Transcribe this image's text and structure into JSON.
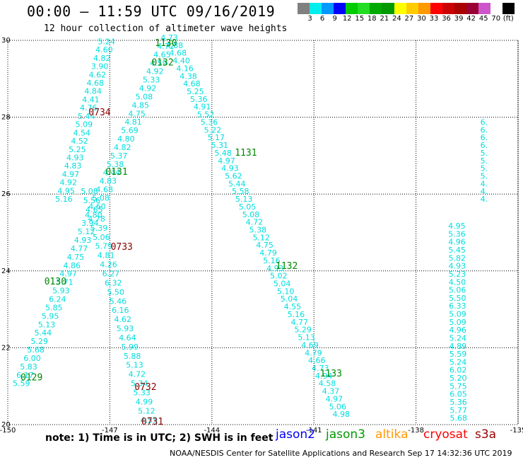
{
  "header": {
    "title": "00:00 – 11:59 UTC 09/16/2019",
    "subtitle": "12 hour collection of altimeter wave heights"
  },
  "legend": {
    "colors": [
      "#808080",
      "#00eeee",
      "#0099ff",
      "#0000ff",
      "#00cc00",
      "#22dd22",
      "#00aa00",
      "#009900",
      "#ffff00",
      "#ffcc00",
      "#ff9900",
      "#ff0000",
      "#cc0000",
      "#aa0000",
      "#990033",
      "#cc55cc",
      "#ffffff",
      "#000000"
    ],
    "labels": [
      "3",
      "6",
      "9",
      "12",
      "15",
      "18",
      "21",
      "24",
      "27",
      "30",
      "33",
      "36",
      "39",
      "42",
      "45",
      "70",
      "(ft)"
    ]
  },
  "axes": {
    "lat_ticks": [
      "30",
      "28",
      "26",
      "24",
      "22",
      "20"
    ],
    "lon_ticks": [
      "-150",
      "-147",
      "-144",
      "-141",
      "-138",
      "-135"
    ]
  },
  "chart_data": {
    "type": "map",
    "lon_range": [
      -150,
      -135
    ],
    "lat_range": [
      20,
      30
    ],
    "grid": true,
    "track_labels": [
      {
        "text": "1130",
        "lon": -145.35,
        "lat": 29.85,
        "color": "#008800"
      },
      {
        "text": "0132",
        "lon": -145.45,
        "lat": 29.35,
        "color": "#008800"
      },
      {
        "text": "0734",
        "lon": -147.3,
        "lat": 28.05,
        "color": "#880000"
      },
      {
        "text": "1131",
        "lon": -143.0,
        "lat": 27.0,
        "color": "#008800"
      },
      {
        "text": "0131",
        "lon": -146.8,
        "lat": 26.5,
        "color": "#008800"
      },
      {
        "text": "0733",
        "lon": -146.65,
        "lat": 24.55,
        "color": "#880000"
      },
      {
        "text": "1132",
        "lon": -141.8,
        "lat": 24.05,
        "color": "#008800"
      },
      {
        "text": "0130",
        "lon": -148.6,
        "lat": 23.65,
        "color": "#008800"
      },
      {
        "text": "1133",
        "lon": -140.5,
        "lat": 21.25,
        "color": "#008800"
      },
      {
        "text": "0129",
        "lon": -149.3,
        "lat": 21.15,
        "color": "#008800"
      },
      {
        "text": "0732",
        "lon": -145.95,
        "lat": 20.9,
        "color": "#880000"
      },
      {
        "text": "0731",
        "lon": -145.75,
        "lat": 20.0,
        "color": "#880000"
      }
    ],
    "tracks": [
      {
        "name": "",
        "color": "#00dddd",
        "lon_start": -147.1,
        "lat_start": 29.9,
        "lon_end": -148.35,
        "lat_end": 25.8,
        "values": [
          "5.24",
          "4.60",
          "4.82",
          "3.90",
          "4.62",
          "4.68",
          "4.84",
          "4.41",
          "4.76",
          "5.44",
          "5.09",
          "4.54",
          "4.52",
          "5.25",
          "4.93",
          "4.83",
          "4.97",
          "4.92",
          "4.95",
          "5.16"
        ]
      },
      {
        "name": "",
        "color": "#00dddd",
        "lon_start": -149.6,
        "lat_start": 21.0,
        "lon_end": -145.25,
        "lat_end": 30.0,
        "values": [
          "5.59",
          "6.17",
          "5.83",
          "6.00",
          "5.68",
          "5.29",
          "5.44",
          "5.13",
          "5.95",
          "5.85",
          "6.24",
          "5.93",
          "5.71",
          "4.97",
          "4.86",
          "4.75",
          "4.77",
          "4.93",
          "5.12",
          "3.94",
          "4.80",
          "4.60",
          "5.08",
          "4.68",
          "4.83",
          "4.44",
          "5.38",
          "5.37",
          "4.82",
          "4.80",
          "5.69",
          "4.81",
          "4.75",
          "4.85",
          "5.08",
          "4.92",
          "5.33",
          "4.92",
          "4.59",
          "4.65",
          "4.72",
          "4.73"
        ]
      },
      {
        "name": "",
        "color": "#00dddd",
        "lon_start": -145.1,
        "lat_start": 29.8,
        "lon_end": -140.2,
        "lat_end": 20.2,
        "values": [
          "4.88",
          "4.68",
          "4.40",
          "4.16",
          "4.38",
          "4.68",
          "5.25",
          "5.36",
          "4.91",
          "5.52",
          "5.36",
          "5.22",
          "5.17",
          "5.31",
          "5.48",
          "4.97",
          "4.93",
          "5.62",
          "5.44",
          "5.58",
          "5.13",
          "5.05",
          "5.08",
          "4.72",
          "5.38",
          "5.12",
          "4.75",
          "4.79",
          "5.16",
          "4.93",
          "5.02",
          "5.04",
          "5.10",
          "5.04",
          "4.55",
          "5.16",
          "4.77",
          "5.29",
          "5.13",
          "4.69",
          "4.79",
          "4.66",
          "4.73",
          "4.94",
          "4.58",
          "4.37",
          "4.97",
          "5.06",
          "4.98"
        ]
      },
      {
        "name": "",
        "color": "#00dddd",
        "lon_start": -147.6,
        "lat_start": 26.0,
        "lon_end": -145.85,
        "lat_end": 20.05,
        "values": [
          "5.08",
          "5.56",
          "4.65",
          "4.78",
          "5.39",
          "5.06",
          "5.79",
          "4.81",
          "4.26",
          "6.27",
          "6.32",
          "5.50",
          "5.46",
          "6.16",
          "4.62",
          "5.93",
          "4.64",
          "5.99",
          "5.88",
          "5.13",
          "4.72",
          "5.34",
          "5.33",
          "4.99",
          "5.12",
          "4.55"
        ]
      },
      {
        "name": "",
        "color": "#00dddd",
        "lon_start": -136.8,
        "lat_start": 25.1,
        "lon_end": -136.75,
        "lat_end": 20.1,
        "values": [
          "4.95",
          "5.36",
          "4.96",
          "5.45",
          "5.82",
          "4.93",
          "5.23",
          "4.50",
          "5.06",
          "5.50",
          "6.33",
          "5.09",
          "5.09",
          "4.96",
          "5.24",
          "4.89",
          "5.59",
          "5.24",
          "6.02",
          "5.20",
          "5.75",
          "6.05",
          "5.36",
          "5.77",
          "5.68"
        ]
      },
      {
        "name": "",
        "color": "#00dddd",
        "lon_start": -136.0,
        "lat_start": 27.8,
        "lon_end": -136.0,
        "lat_end": 25.8,
        "values": [
          "6.",
          "6.",
          "6.",
          "6.",
          "5.",
          "5.",
          "5.",
          "5.",
          "4.",
          "4.",
          "4."
        ]
      }
    ]
  },
  "footer": {
    "note": "note:  1) Time is in UTC;  2) SWH is in feet",
    "satellites": [
      {
        "name": "jason2",
        "color": "#0000ff"
      },
      {
        "name": "jason3",
        "color": "#009900"
      },
      {
        "name": "altika",
        "color": "#ff9900"
      },
      {
        "name": "cryosat",
        "color": "#ff0000"
      },
      {
        "name": "s3a",
        "color": "#990000"
      }
    ],
    "credit": "NOAA/NESDIS Center for Satellite Applications and Research     Sep 17 14:32:36 UTC 2019"
  }
}
